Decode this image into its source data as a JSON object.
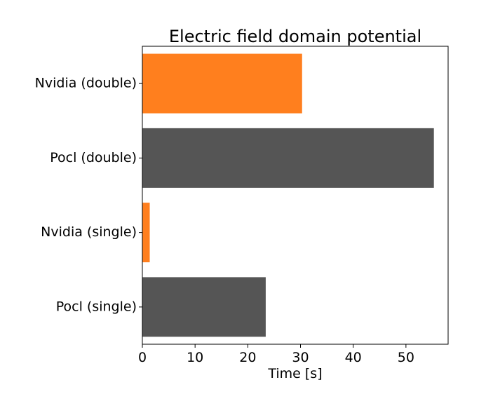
{
  "chart_data": {
    "type": "bar",
    "orientation": "horizontal",
    "title": "Electric field domain potential",
    "xlabel": "Time [s]",
    "ylabel": "",
    "categories": [
      "Nvidia (double)",
      "Pocl (double)",
      "Nvidia (single)",
      "Pocl (single)"
    ],
    "values": [
      30.3,
      55.3,
      1.4,
      23.4
    ],
    "bar_colors": [
      "#ff7f1e",
      "#555555",
      "#ff7f1e",
      "#555555"
    ],
    "xlim": [
      0,
      58
    ],
    "xticks": [
      0,
      10,
      20,
      30,
      40,
      50
    ],
    "grid": false
  }
}
